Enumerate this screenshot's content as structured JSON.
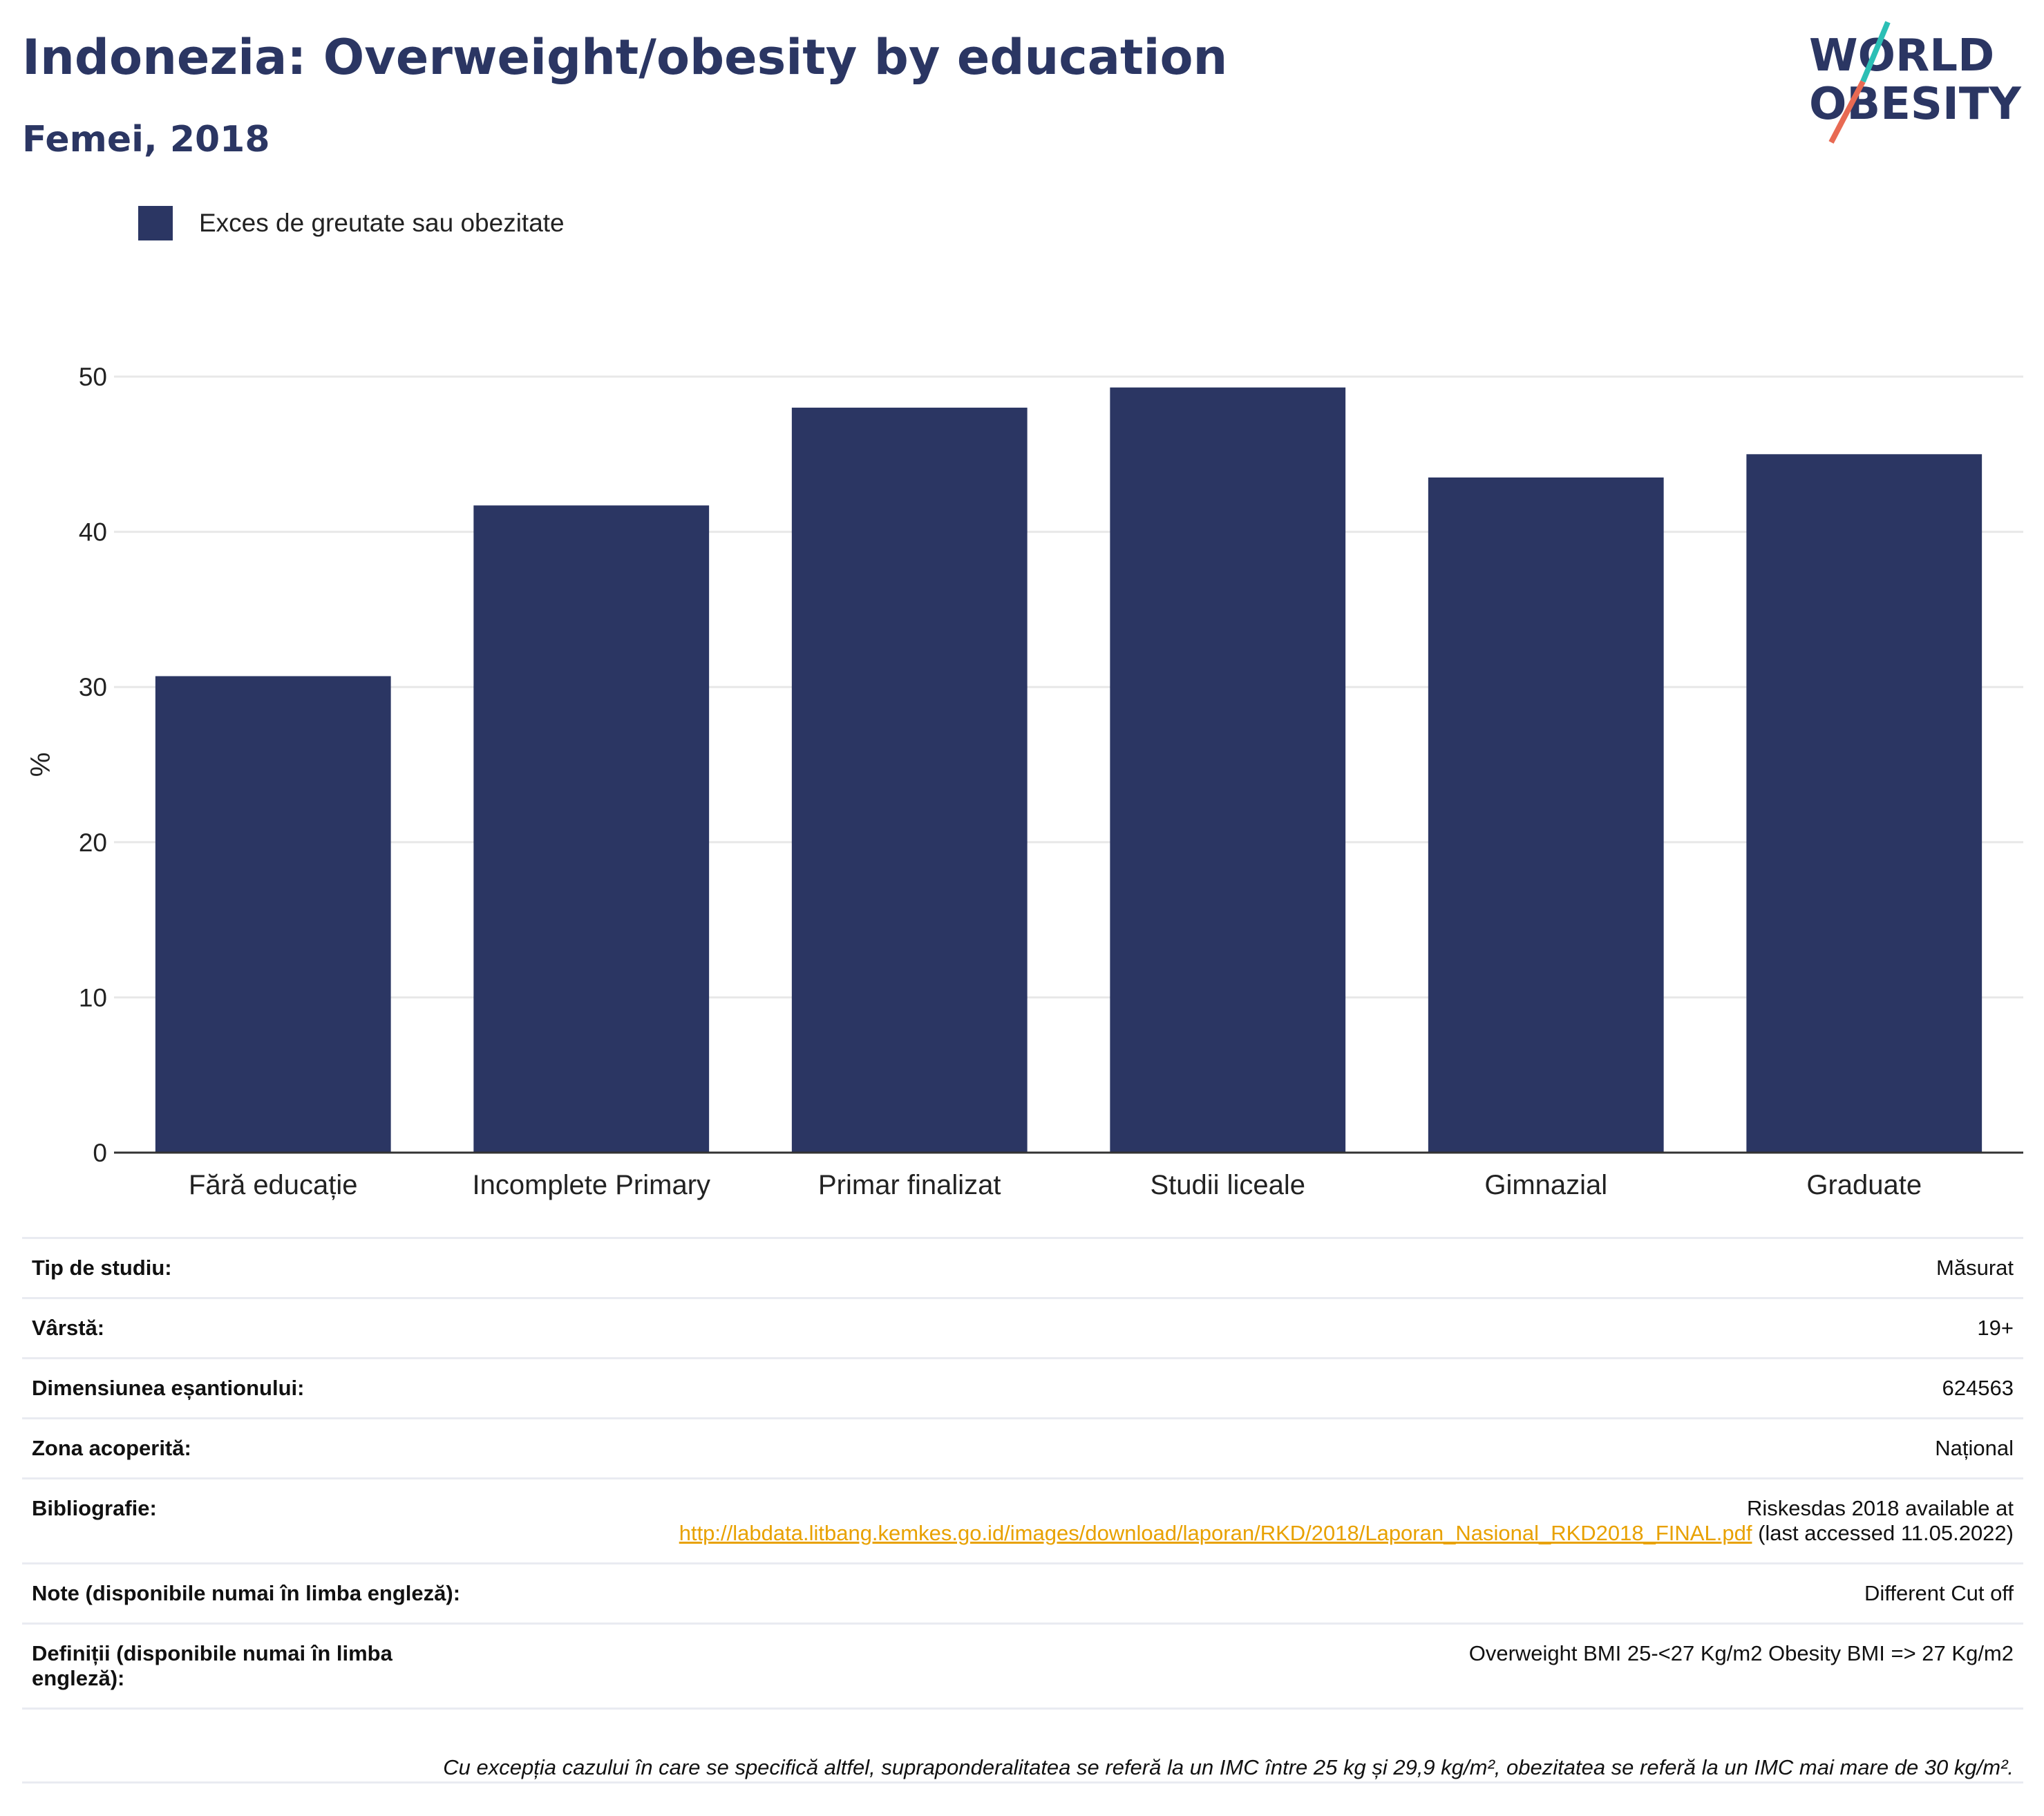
{
  "header": {
    "title": "Indonezia: Overweight/obesity by education",
    "subtitle": "Femei, 2018"
  },
  "logo": {
    "line1": "WORLD",
    "line2": "OBESITY",
    "colors": {
      "text": "#2b3663",
      "slash_top": "#2bbfb5",
      "slash_bottom": "#e86a53"
    }
  },
  "colors": {
    "bar": "#2b3663",
    "grid": "#e8e8e8",
    "axis": "#333333",
    "link": "#e8a100"
  },
  "chart_data": {
    "type": "bar",
    "categories": [
      "Fără educație",
      "Incomplete Primary",
      "Primar finalizat",
      "Studii liceale",
      "Gimnazial",
      "Graduate"
    ],
    "series": [
      {
        "name": "Exces de greutate sau obezitate",
        "values": [
          30.7,
          41.7,
          48.0,
          49.3,
          43.5,
          45.0
        ]
      }
    ],
    "ylabel": "%",
    "ylim": [
      0,
      50
    ],
    "yticks": [
      0,
      10,
      20,
      30,
      40,
      50
    ],
    "grid": true,
    "legend_position": "top-left"
  },
  "info": {
    "rows": [
      {
        "key": "Tip de studiu:",
        "value": "Măsurat"
      },
      {
        "key": "Vârstă:",
        "value": "19+"
      },
      {
        "key": "Dimensiunea eșantionului:",
        "value": "624563"
      },
      {
        "key": "Zona acoperită:",
        "value": "Național"
      }
    ],
    "bibliography": {
      "key": "Bibliografie:",
      "prefix": "Riskesdas 2018 available at",
      "link": "http://labdata.litbang.kemkes.go.id/images/download/laporan/RKD/2018/Laporan_Nasional_RKD2018_FINAL.pdf",
      "suffix": "(last accessed 11.05.2022)"
    },
    "notes": {
      "key": "Note (disponibile numai în limba engleză):",
      "value": "Different Cut off"
    },
    "definitions": {
      "key": "Definiții (disponibile numai în limba engleză):",
      "value": "Overweight BMI 25-<27 Kg/m2 Obesity BMI => 27 Kg/m2"
    }
  },
  "footnote": "Cu excepția cazului în care se specifică altfel, supraponderalitatea se referă la un IMC între 25 kg și 29,9 kg/m², obezitatea se referă la un IMC mai mare de 30 kg/m²."
}
